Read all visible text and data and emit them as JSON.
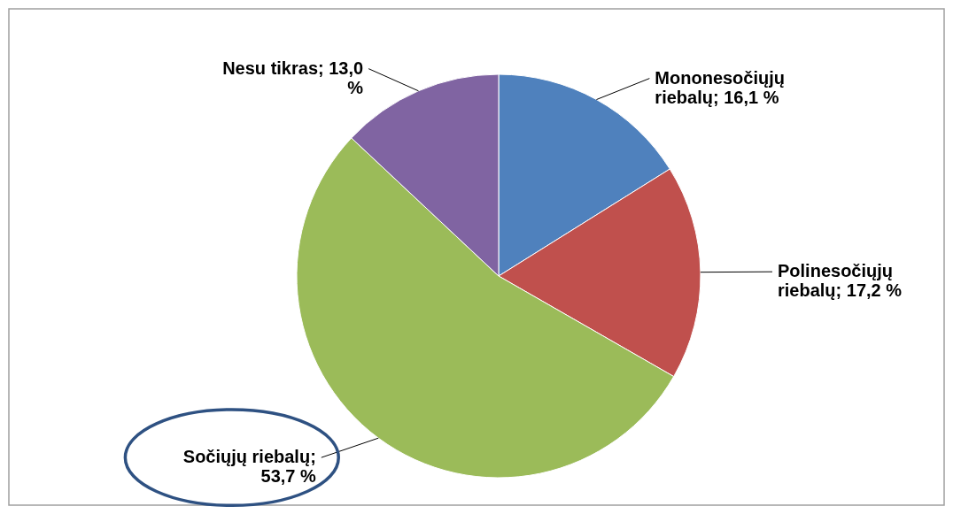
{
  "chart_data": {
    "type": "pie",
    "categories": [
      "Mononesočiųjų riebalų",
      "Polinesočiųjų riebalų",
      "Sočiųjų riebalų",
      "Nesu tikras"
    ],
    "values": [
      16.1,
      17.2,
      53.7,
      13.0
    ],
    "colors": [
      "#4f81bd",
      "#c0504d",
      "#9bbb59",
      "#8064a2"
    ],
    "value_labels": [
      "; 16,1 %",
      "; 17,2 %",
      "; 53,7 %",
      "; 13,0 %"
    ]
  }
}
